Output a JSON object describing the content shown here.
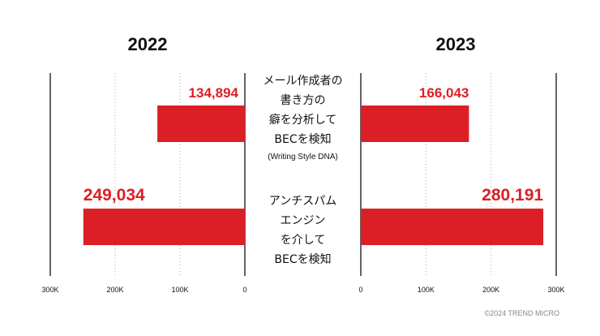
{
  "chart_data": [
    {
      "type": "bar",
      "orientation": "horizontal",
      "direction": "right-to-left",
      "title": "2022",
      "categories": [
        [
          "メール作成者の",
          "書き方の",
          "癖を分析して",
          "BECを検知",
          "(Writing Style DNA)"
        ],
        [
          "アンチスパム",
          "エンジン",
          "を介して",
          "BECを検知"
        ]
      ],
      "values": [
        134894,
        249034
      ],
      "value_labels": [
        "134,894",
        "249,034"
      ],
      "ticks": [
        "300K",
        "200K",
        "100K",
        "0"
      ],
      "tick_values": [
        300000,
        200000,
        100000,
        0
      ],
      "xlim": [
        0,
        300000
      ],
      "bar_color": "#dc1f26"
    },
    {
      "type": "bar",
      "orientation": "horizontal",
      "direction": "left-to-right",
      "title": "2023",
      "values": [
        166043,
        280191
      ],
      "value_labels": [
        "166,043",
        "280,191"
      ],
      "ticks": [
        "0",
        "100K",
        "200K",
        "300K"
      ],
      "tick_values": [
        0,
        100000,
        200000,
        300000
      ],
      "xlim": [
        0,
        300000
      ],
      "bar_color": "#dc1f26"
    }
  ],
  "credit": "©2024 TREND MICRO"
}
